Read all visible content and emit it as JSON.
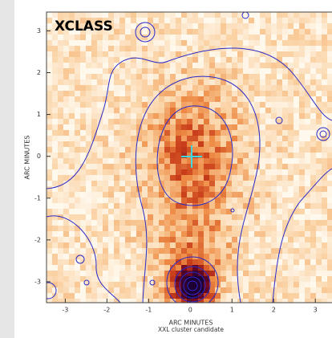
{
  "chart_data": {
    "type": "image",
    "title": "XCLASS",
    "subtitle": "XXL cluster candidate",
    "x_label": "ARC MINUTES",
    "y_label": "ARC MINUTES",
    "xlim": [
      -3.45,
      3.4
    ],
    "ylim": [
      -3.5,
      3.45
    ],
    "xticks": [
      -3,
      -2,
      -1,
      0,
      1,
      2,
      3
    ],
    "yticks": [
      -3,
      -2,
      -1,
      0,
      1,
      2,
      3
    ]
  }
}
